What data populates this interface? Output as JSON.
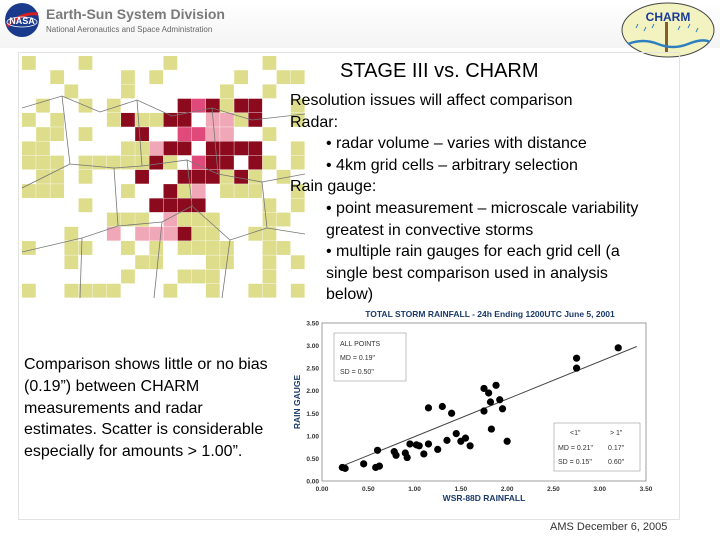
{
  "header": {
    "division": "Earth-Sun System Division",
    "agency": "National Aeronautics and Space Administration",
    "nasa_logo_text": "NASA",
    "charm_logo_text": "CHARM"
  },
  "slide": {
    "title": "STAGE III vs.  CHARM",
    "bullets": [
      {
        "level": 1,
        "text": "Resolution issues will affect comparison"
      },
      {
        "level": 1,
        "text": "Radar:"
      },
      {
        "level": 2,
        "text": "• radar volume – varies with distance"
      },
      {
        "level": 2,
        "text": "• 4km grid cells – arbitrary selection"
      },
      {
        "level": 1,
        "text": "Rain gauge:"
      },
      {
        "level": 2,
        "text": "• point measurement – microscale variability greatest in convective storms"
      },
      {
        "level": 2,
        "text": "• multiple rain gauges for each grid cell (a single best comparison used in analysis below)"
      }
    ],
    "summary": "Comparison shows little or no bias (0.19”) between CHARM measurements and radar estimates.  Scatter is considerable especially for amounts > 1.00”."
  },
  "colors": {
    "map_light": "#dddd8c",
    "map_dark": "#8b0a1e",
    "map_pink": "#e04a7a",
    "map_pale_pink": "#f0a8b8",
    "boundary": "#777777"
  },
  "chart_data": {
    "type": "scatter",
    "title": "TOTAL STORM RAINFALL - 24h Ending 1200UTC June 5, 2001",
    "xlabel": "WSR-88D RAINFALL",
    "ylabel": "RAIN GAUGE",
    "xlim": [
      0,
      3.5
    ],
    "ylim": [
      0,
      3.5
    ],
    "xticks": [
      "0.00",
      "0.50",
      "1.00",
      "1.50",
      "2.00",
      "2.50",
      "3.00",
      "3.50"
    ],
    "yticks": [
      "0.00",
      "0.50",
      "1.00",
      "1.50",
      "2.00",
      "2.50",
      "3.00",
      "3.50"
    ],
    "points": [
      {
        "x": 0.22,
        "y": 0.3
      },
      {
        "x": 0.25,
        "y": 0.28
      },
      {
        "x": 0.45,
        "y": 0.38
      },
      {
        "x": 0.58,
        "y": 0.3
      },
      {
        "x": 0.6,
        "y": 0.68
      },
      {
        "x": 0.62,
        "y": 0.33
      },
      {
        "x": 0.78,
        "y": 0.65
      },
      {
        "x": 0.8,
        "y": 0.57
      },
      {
        "x": 0.9,
        "y": 0.62
      },
      {
        "x": 0.92,
        "y": 0.52
      },
      {
        "x": 0.95,
        "y": 0.82
      },
      {
        "x": 1.02,
        "y": 0.8
      },
      {
        "x": 1.05,
        "y": 0.78
      },
      {
        "x": 1.1,
        "y": 0.6
      },
      {
        "x": 1.15,
        "y": 0.82
      },
      {
        "x": 1.15,
        "y": 1.62
      },
      {
        "x": 1.25,
        "y": 0.7
      },
      {
        "x": 1.3,
        "y": 1.65
      },
      {
        "x": 1.35,
        "y": 0.9
      },
      {
        "x": 1.4,
        "y": 1.5
      },
      {
        "x": 1.45,
        "y": 1.05
      },
      {
        "x": 1.5,
        "y": 0.88
      },
      {
        "x": 1.55,
        "y": 0.95
      },
      {
        "x": 1.6,
        "y": 0.78
      },
      {
        "x": 1.75,
        "y": 1.55
      },
      {
        "x": 1.75,
        "y": 2.05
      },
      {
        "x": 1.8,
        "y": 1.95
      },
      {
        "x": 1.82,
        "y": 1.75
      },
      {
        "x": 1.83,
        "y": 1.15
      },
      {
        "x": 1.88,
        "y": 2.12
      },
      {
        "x": 1.92,
        "y": 1.8
      },
      {
        "x": 1.95,
        "y": 1.6
      },
      {
        "x": 2.0,
        "y": 0.88
      },
      {
        "x": 2.75,
        "y": 2.72
      },
      {
        "x": 2.75,
        "y": 2.5
      },
      {
        "x": 3.2,
        "y": 2.95
      }
    ],
    "trendline": [
      [
        0.18,
        0.3
      ],
      [
        3.4,
        2.98
      ]
    ],
    "stats_all": {
      "heading": "ALL POINTS",
      "md": "MD = 0.19\"",
      "sd": "SD = 0.50\""
    },
    "stats_split": {
      "col_lt": "<1\"",
      "col_gt": "> 1\"",
      "md_label": "MD = 0.21\"",
      "md_gt": "0.17\"",
      "sd_label": "SD = 0.15\"",
      "sd_gt": "0.60\""
    }
  },
  "footer": {
    "text": "AMS  December 6, 2005"
  }
}
